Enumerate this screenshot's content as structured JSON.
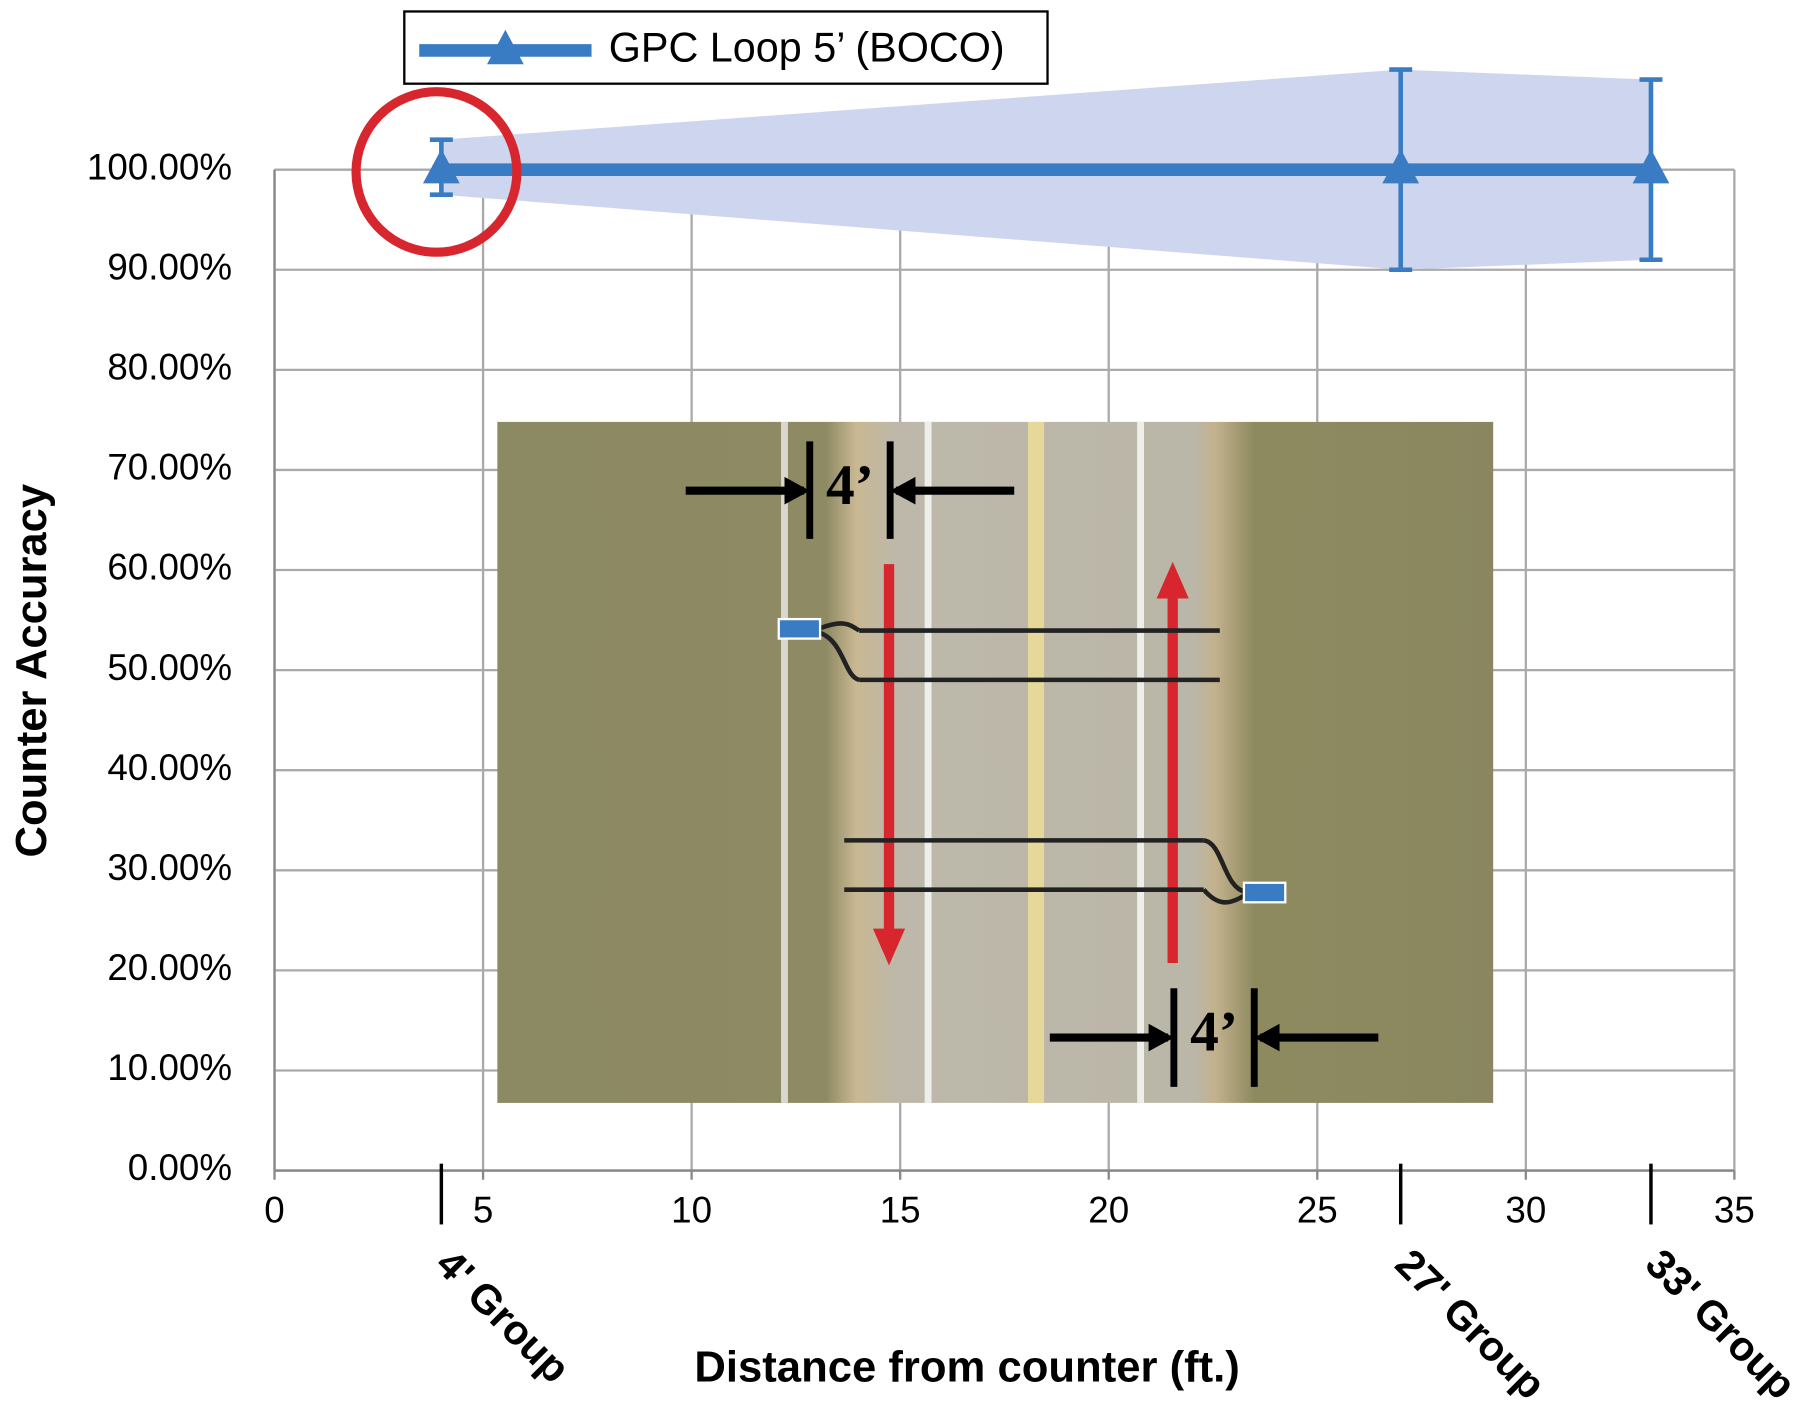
{
  "chart_data": {
    "type": "line",
    "legend_label": "GPC Loop 5’ (BOCO)",
    "xlabel": "Distance from counter (ft.)",
    "ylabel": "Counter Accuracy",
    "x": [
      4,
      27,
      33
    ],
    "categories": [
      "4' Group",
      "27' Group",
      "33' Group"
    ],
    "series": [
      {
        "name": "GPC Loop 5’ (BOCO)",
        "color": "#3a7cc4",
        "values": [
          100,
          100,
          100
        ],
        "err_plus": [
          3,
          10,
          9
        ],
        "err_minus": [
          2.5,
          10,
          9
        ]
      }
    ],
    "band_color": "#cdd6ee",
    "xlim": [
      0,
      35
    ],
    "xticks": [
      0,
      5,
      10,
      15,
      20,
      25,
      30,
      35
    ],
    "ylim": [
      0,
      100
    ],
    "yticks": [
      {
        "value": 0,
        "label": "0.00%"
      },
      {
        "value": 10,
        "label": "10.00%"
      },
      {
        "value": 20,
        "label": "20.00%"
      },
      {
        "value": 30,
        "label": "30.00%"
      },
      {
        "value": 40,
        "label": "40.00%"
      },
      {
        "value": 50,
        "label": "50.00%"
      },
      {
        "value": 60,
        "label": "60.00%"
      },
      {
        "value": 70,
        "label": "70.00%"
      },
      {
        "value": 80,
        "label": "80.00%"
      },
      {
        "value": 90,
        "label": "90.00%"
      },
      {
        "value": 100,
        "label": "100.00%"
      }
    ],
    "grid": true
  },
  "inset": {
    "labels": [
      "4’",
      "4’"
    ]
  }
}
